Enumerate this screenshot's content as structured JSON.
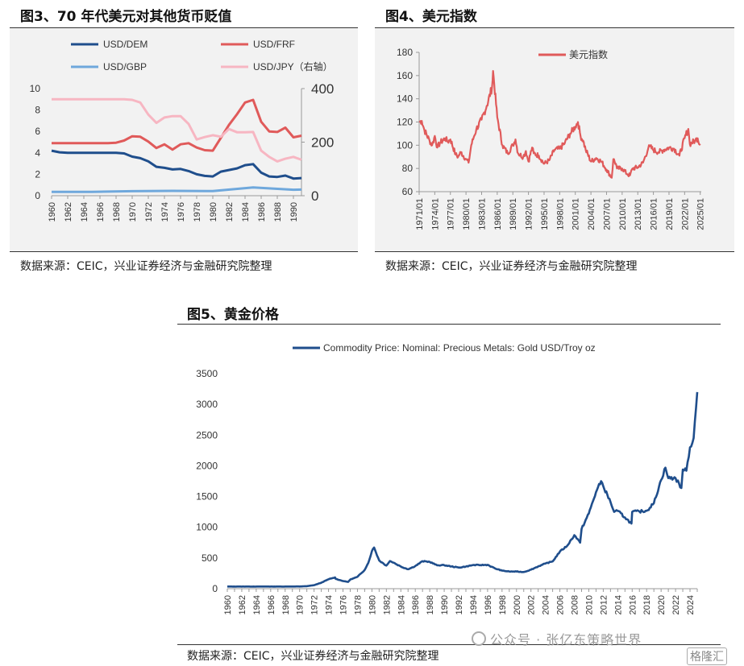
{
  "figures": {
    "fig3": {
      "title": "图3、70 年代美元对其他货币贬值",
      "source": "数据来源：CEIC，兴业证券经济与金融研究院整理"
    },
    "fig4": {
      "title": "图4、美元指数",
      "source": "数据来源：CEIC，兴业证券经济与金融研究院整理"
    },
    "fig5": {
      "title": "图5、黄金价格",
      "source": "数据来源：CEIC，兴业证券经济与金融研究院整理"
    }
  },
  "watermark": {
    "text": "公众号 · 张亿东策略世界",
    "brand": "格隆汇"
  },
  "colors": {
    "dem": "#1f4e8c",
    "frf": "#e05a5a",
    "gbp": "#6fa8dc",
    "jpy": "#f7b6c2",
    "dxy": "#e05a5a",
    "gold": "#1f4e8c"
  },
  "chart_data": [
    {
      "type": "line",
      "title": "图3、70 年代美元对其他货币贬值",
      "x_tick_labels": [
        "1960",
        "1962",
        "1964",
        "1966",
        "1968",
        "1970",
        "1972",
        "1974",
        "1976",
        "1978",
        "1980",
        "1982",
        "1984",
        "1986",
        "1988",
        "1990"
      ],
      "ylim_left": [
        0,
        10
      ],
      "yticks_left": [
        "0",
        "2",
        "4",
        "6",
        "8",
        "10"
      ],
      "ylim_right": [
        0,
        400
      ],
      "yticks_right": [
        "0",
        "200",
        "400"
      ],
      "legend": [
        "USD/DEM",
        "USD/FRF",
        "USD/GBP",
        "USD/JPY（右轴）"
      ],
      "series": [
        {
          "name": "USD/DEM",
          "axis": "left",
          "x": [
            1960,
            1961,
            1962,
            1963,
            1964,
            1965,
            1966,
            1967,
            1968,
            1969,
            1970,
            1971,
            1972,
            1973,
            1974,
            1975,
            1976,
            1977,
            1978,
            1979,
            1980,
            1981,
            1982,
            1983,
            1984,
            1985,
            1986,
            1987,
            1988,
            1989,
            1990,
            1991
          ],
          "values": [
            4.2,
            4.05,
            4.0,
            4.0,
            4.0,
            4.0,
            4.0,
            4.0,
            4.0,
            3.95,
            3.65,
            3.5,
            3.2,
            2.7,
            2.6,
            2.45,
            2.5,
            2.3,
            2.0,
            1.85,
            1.8,
            2.25,
            2.4,
            2.55,
            2.85,
            2.95,
            2.15,
            1.8,
            1.75,
            1.88,
            1.6,
            1.65
          ]
        },
        {
          "name": "USD/FRF",
          "axis": "left",
          "x": [
            1960,
            1961,
            1962,
            1963,
            1964,
            1965,
            1966,
            1967,
            1968,
            1969,
            1970,
            1971,
            1972,
            1973,
            1974,
            1975,
            1976,
            1977,
            1978,
            1979,
            1980,
            1981,
            1982,
            1983,
            1984,
            1985,
            1986,
            1987,
            1988,
            1989,
            1990,
            1991
          ],
          "values": [
            4.9,
            4.9,
            4.9,
            4.9,
            4.9,
            4.9,
            4.9,
            4.9,
            4.95,
            5.15,
            5.55,
            5.5,
            5.05,
            4.45,
            4.8,
            4.3,
            4.8,
            4.9,
            4.5,
            4.25,
            4.2,
            5.4,
            6.6,
            7.6,
            8.7,
            8.95,
            6.9,
            6.0,
            5.95,
            6.35,
            5.45,
            5.6
          ]
        },
        {
          "name": "USD/GBP",
          "axis": "left",
          "x": [
            1960,
            1965,
            1970,
            1975,
            1980,
            1985,
            1990,
            1991
          ],
          "values": [
            0.36,
            0.36,
            0.42,
            0.45,
            0.43,
            0.77,
            0.56,
            0.57
          ]
        },
        {
          "name": "USD/JPY（右轴）",
          "axis": "right",
          "x": [
            1960,
            1961,
            1962,
            1963,
            1964,
            1965,
            1966,
            1967,
            1968,
            1969,
            1970,
            1971,
            1972,
            1973,
            1974,
            1975,
            1976,
            1977,
            1978,
            1979,
            1980,
            1981,
            1982,
            1983,
            1984,
            1985,
            1986,
            1987,
            1988,
            1989,
            1990,
            1991
          ],
          "values": [
            360,
            360,
            360,
            360,
            360,
            360,
            360,
            360,
            360,
            360,
            358,
            348,
            303,
            272,
            292,
            297,
            297,
            268,
            210,
            219,
            226,
            220,
            249,
            237,
            237,
            238,
            168,
            145,
            128,
            138,
            145,
            134
          ]
        }
      ]
    },
    {
      "type": "line",
      "title": "图4、美元指数",
      "legend": [
        "美元指数"
      ],
      "ylim": [
        60,
        180
      ],
      "yticks": [
        "60",
        "80",
        "100",
        "120",
        "140",
        "160",
        "180"
      ],
      "x_tick_labels": [
        "1971/01",
        "1974/01",
        "1977/01",
        "1980/01",
        "1983/01",
        "1986/01",
        "1989/01",
        "1992/01",
        "1995/01",
        "1998/01",
        "2001/01",
        "2004/01",
        "2007/01",
        "2010/01",
        "2013/01",
        "2016/01",
        "2019/01",
        "2022/01",
        "2025/01"
      ],
      "series": [
        {
          "name": "美元指数",
          "x": [
            1971,
            1971.5,
            1972,
            1973,
            1973.5,
            1974,
            1974.5,
            1975,
            1976,
            1976.5,
            1977,
            1978,
            1978.5,
            1979,
            1980,
            1980.5,
            1981,
            1981.5,
            1982,
            1983,
            1984,
            1985,
            1985.2,
            1986,
            1987,
            1988,
            1989,
            1989.5,
            1990,
            1991,
            1991.5,
            1992,
            1992.7,
            1993,
            1994,
            1995,
            1996,
            1997,
            1998,
            1999,
            2000,
            2001,
            2001.5,
            2002,
            2002.5,
            2003,
            2004,
            2005,
            2006,
            2007,
            2008,
            2008.3,
            2008.8,
            2009,
            2010,
            2011,
            2011.5,
            2012,
            2013,
            2014,
            2015,
            2015.3,
            2016,
            2017,
            2018,
            2019,
            2020,
            2021,
            2022,
            2022.7,
            2023,
            2024,
            2024.5,
            2025
          ],
          "values": [
            120,
            121,
            113,
            104,
            100,
            108,
            98,
            102,
            106,
            103,
            105,
            92,
            90,
            94,
            88,
            85,
            100,
            107,
            114,
            122,
            134,
            150,
            164,
            124,
            100,
            93,
            100,
            105,
            93,
            90,
            95,
            86,
            98,
            93,
            91,
            84,
            87,
            96,
            97,
            102,
            110,
            116,
            120,
            108,
            104,
            96,
            86,
            89,
            86,
            79,
            72,
            88,
            84,
            80,
            80,
            75,
            74,
            80,
            81,
            85,
            97,
            99,
            96,
            94,
            96,
            98,
            97,
            91,
            106,
            114,
            101,
            104,
            106,
            100
          ]
        }
      ]
    },
    {
      "type": "line",
      "title": "图5、黄金价格",
      "legend": [
        "Commodity Price: Nominal: Precious Metals: Gold USD/Troy oz"
      ],
      "ylim": [
        0,
        3500
      ],
      "yticks": [
        "0",
        "500",
        "1000",
        "1500",
        "2000",
        "2500",
        "3000",
        "3500"
      ],
      "x_tick_labels": [
        "1960",
        "1962",
        "1964",
        "1966",
        "1968",
        "1970",
        "1972",
        "1974",
        "1976",
        "1978",
        "1980",
        "1982",
        "1984",
        "1986",
        "1988",
        "1990",
        "1992",
        "1994",
        "1996",
        "1998",
        "2000",
        "2002",
        "2004",
        "2006",
        "2008",
        "2010",
        "2012",
        "2014",
        "2016",
        "2018",
        "2020",
        "2022",
        "2024"
      ],
      "series": [
        {
          "name": "Commodity Price: Nominal: Precious Metals: Gold USD/Troy oz",
          "x": [
            1960,
            1968,
            1970,
            1971,
            1972,
            1973,
            1974,
            1974.9,
            1975,
            1976,
            1976.7,
            1977,
            1978,
            1979,
            1979.5,
            1980,
            1980.3,
            1981,
            1982,
            1982.5,
            1983,
            1984,
            1985,
            1986,
            1987,
            1988,
            1989,
            1990,
            1991,
            1992,
            1993,
            1994,
            1995,
            1996,
            1997,
            1998,
            1999,
            2000,
            2001,
            2002,
            2003,
            2004,
            2005,
            2006,
            2007,
            2008,
            2008.8,
            2009,
            2010,
            2011,
            2011.7,
            2012,
            2013,
            2013.5,
            2014,
            2015,
            2015.9,
            2016,
            2017,
            2018,
            2019,
            2020,
            2020.6,
            2021,
            2022,
            2022.8,
            2023,
            2023.5,
            2024,
            2024.5,
            2025
          ],
          "values": [
            35,
            35,
            36,
            41,
            58,
            97,
            154,
            183,
            160,
            125,
            110,
            148,
            193,
            306,
            420,
            612,
            670,
            460,
            376,
            450,
            424,
            360,
            317,
            368,
            447,
            437,
            381,
            383,
            362,
            344,
            360,
            385,
            384,
            388,
            331,
            294,
            279,
            279,
            271,
            310,
            363,
            409,
            445,
            604,
            697,
            872,
            750,
            972,
            1225,
            1572,
            1750,
            1669,
            1411,
            1250,
            1266,
            1160,
            1060,
            1250,
            1257,
            1268,
            1392,
            1770,
            1970,
            1800,
            1800,
            1640,
            1940,
            1920,
            2300,
            2450,
            3200
          ]
        }
      ]
    }
  ]
}
